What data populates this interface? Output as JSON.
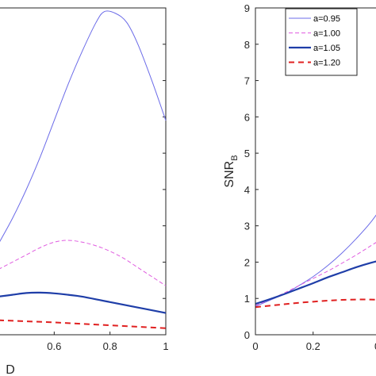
{
  "chart_data": [
    {
      "type": "line",
      "panel": "left",
      "xlabel": "D",
      "ylabel": "",
      "xlim": [
        0.4,
        1.0
      ],
      "ylim": [
        0,
        9
      ],
      "xticks": [
        0.6,
        0.8,
        1
      ],
      "xtick_labels": [
        "0.6",
        "0.8",
        "1"
      ],
      "grid": false,
      "legend": false,
      "series": [
        {
          "key": "a095",
          "color": "#6b6be8",
          "dash": "",
          "width": 1,
          "x": [
            0.4,
            0.45,
            0.5,
            0.55,
            0.6,
            0.65,
            0.7,
            0.75,
            0.78,
            0.82,
            0.86,
            0.9,
            0.95,
            1.0
          ],
          "y": [
            2.5,
            3.2,
            4.0,
            4.9,
            5.9,
            6.9,
            7.8,
            8.6,
            8.9,
            8.85,
            8.6,
            8.0,
            7.0,
            5.9
          ]
        },
        {
          "key": "a100",
          "color": "#e05ce0",
          "dash": "5,3",
          "width": 1,
          "x": [
            0.4,
            0.45,
            0.5,
            0.55,
            0.6,
            0.65,
            0.7,
            0.75,
            0.8,
            0.85,
            0.9,
            0.95,
            1.0
          ],
          "y": [
            1.8,
            2.0,
            2.2,
            2.4,
            2.55,
            2.6,
            2.55,
            2.45,
            2.3,
            2.1,
            1.85,
            1.6,
            1.35
          ]
        },
        {
          "key": "a105",
          "color": "#1f3ea8",
          "dash": "",
          "width": 2.2,
          "x": [
            0.4,
            0.45,
            0.5,
            0.55,
            0.6,
            0.65,
            0.7,
            0.8,
            0.9,
            1.0
          ],
          "y": [
            1.05,
            1.1,
            1.15,
            1.16,
            1.14,
            1.1,
            1.05,
            0.9,
            0.75,
            0.6
          ]
        },
        {
          "key": "a120",
          "color": "#e02020",
          "dash": "7,5",
          "width": 2,
          "x": [
            0.4,
            0.5,
            0.6,
            0.7,
            0.8,
            0.9,
            1.0
          ],
          "y": [
            0.4,
            0.37,
            0.34,
            0.3,
            0.26,
            0.22,
            0.18
          ]
        }
      ]
    },
    {
      "type": "line",
      "panel": "right",
      "xlabel": "",
      "ylabel_main": "SNR",
      "ylabel_sub": "B",
      "xlim": [
        0,
        0.55
      ],
      "ylim": [
        0,
        9
      ],
      "xticks": [
        0,
        0.2
      ],
      "xtick_labels": [
        "0",
        "0.2"
      ],
      "yticks": [
        0,
        1,
        2,
        3,
        4,
        5,
        6,
        7,
        8,
        9
      ],
      "ytick_labels": [
        "0",
        "1",
        "2",
        "3",
        "4",
        "5",
        "6",
        "7",
        "8",
        "9"
      ],
      "grid": false,
      "legend": "top-left",
      "series": [
        {
          "key": "a095",
          "name": "a=0.95",
          "color": "#6b6be8",
          "dash": "",
          "width": 1,
          "x": [
            0,
            0.05,
            0.1,
            0.15,
            0.2,
            0.25,
            0.3,
            0.35,
            0.4,
            0.45
          ],
          "y": [
            0.78,
            0.95,
            1.12,
            1.35,
            1.6,
            1.9,
            2.25,
            2.65,
            3.1,
            3.65
          ]
        },
        {
          "key": "a100",
          "name": "a=1.00",
          "color": "#e05ce0",
          "dash": "5,3",
          "width": 1,
          "x": [
            0,
            0.05,
            0.1,
            0.15,
            0.2,
            0.25,
            0.3,
            0.35,
            0.4,
            0.45
          ],
          "y": [
            0.8,
            0.97,
            1.15,
            1.35,
            1.55,
            1.75,
            1.97,
            2.2,
            2.45,
            2.7
          ]
        },
        {
          "key": "a105",
          "name": "a=1.05",
          "color": "#1f3ea8",
          "dash": "",
          "width": 2.2,
          "x": [
            0,
            0.05,
            0.1,
            0.15,
            0.2,
            0.25,
            0.3,
            0.35,
            0.4,
            0.45
          ],
          "y": [
            0.85,
            0.98,
            1.12,
            1.27,
            1.42,
            1.58,
            1.72,
            1.86,
            1.98,
            2.08
          ]
        },
        {
          "key": "a120",
          "name": "a=1.20",
          "color": "#e02020",
          "dash": "7,5",
          "width": 2,
          "x": [
            0,
            0.05,
            0.1,
            0.15,
            0.2,
            0.25,
            0.3,
            0.35,
            0.4,
            0.45
          ],
          "y": [
            0.76,
            0.8,
            0.84,
            0.88,
            0.91,
            0.94,
            0.96,
            0.97,
            0.97,
            0.96
          ]
        }
      ]
    }
  ]
}
